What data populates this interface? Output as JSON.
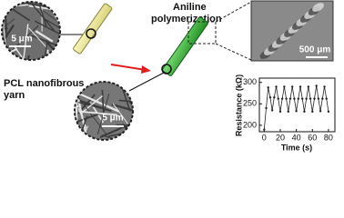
{
  "labels": {
    "yarn": [
      "PCL nanofibrous",
      "yarn"
    ],
    "process": [
      "Aniline",
      "polymerization"
    ]
  },
  "scale_bars": {
    "top_left": "5 μm",
    "bottom": "5 μm",
    "top_right": "500 μm"
  },
  "chart_data": {
    "type": "line",
    "xlabel": "Time (s)",
    "ylabel": "Resistance (kΩ)",
    "x": [
      0,
      2.5,
      5,
      7.5,
      10,
      12.5,
      15,
      17.5,
      20,
      22.5,
      25,
      27.5,
      30,
      32.5,
      35,
      37.5,
      40,
      42.5,
      45,
      47.5,
      50,
      52.5,
      55,
      57.5,
      60,
      62.5,
      65,
      67.5,
      70,
      72.5,
      75,
      77.5,
      80
    ],
    "series": [
      {
        "name": "Resistance",
        "color": "#222222",
        "values": [
          190,
          240,
          288,
          265,
          235,
          265,
          290,
          262,
          232,
          262,
          290,
          262,
          232,
          262,
          290,
          262,
          233,
          262,
          290,
          262,
          232,
          262,
          290,
          262,
          232,
          262,
          292,
          262,
          233,
          262,
          290,
          262,
          232
        ]
      }
    ],
    "xlim": [
      -6,
      88
    ],
    "ylim": [
      185,
      310
    ],
    "xticks": [
      0,
      20,
      40,
      60,
      80
    ],
    "yticks": [
      200,
      250,
      300
    ]
  }
}
